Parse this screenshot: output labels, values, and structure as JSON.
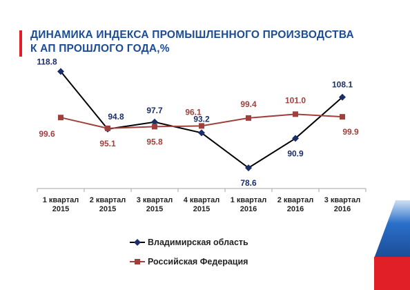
{
  "header": {
    "title_line1": "ДИНАМИКА ИНДЕКСА ПРОМЫШЛЕННОГО ПРОИЗВОДСТВА",
    "title_line2": "К АП ПРОШЛОГО ГОДА,%"
  },
  "chart_data": {
    "type": "line",
    "categories": [
      [
        "1 квартал",
        "2015"
      ],
      [
        "2 квартал",
        "2015"
      ],
      [
        "3 квартал",
        "2015"
      ],
      [
        "4 квартал",
        "2015"
      ],
      [
        "1 квартал",
        "2016"
      ],
      [
        "2 квартал",
        "2016"
      ],
      [
        "3 квартал",
        "2016"
      ]
    ],
    "ylim": [
      70,
      125
    ],
    "grid": false,
    "legend": "bottom",
    "series": [
      {
        "name": "Владимирская область",
        "values": [
          118.8,
          94.8,
          97.7,
          93.2,
          78.6,
          90.9,
          108.1
        ],
        "labels": [
          "118.8",
          "94.8",
          "97.7",
          "93.2",
          "78.6",
          "90.9",
          "108.1"
        ],
        "color": "#1a2f6a",
        "label_color": "#1a2f6a",
        "line_color": "#000000",
        "marker": "diamond"
      },
      {
        "name": "Российская Федерация",
        "values": [
          99.6,
          95.1,
          95.8,
          96.1,
          99.4,
          101.0,
          99.9
        ],
        "labels": [
          "99.6",
          "95.1",
          "95.8",
          "96.1",
          "99.4",
          "101.0",
          "99.9"
        ],
        "color": "#a0403c",
        "label_color": "#a0403c",
        "line_color": "#a0403c",
        "marker": "square"
      }
    ]
  }
}
